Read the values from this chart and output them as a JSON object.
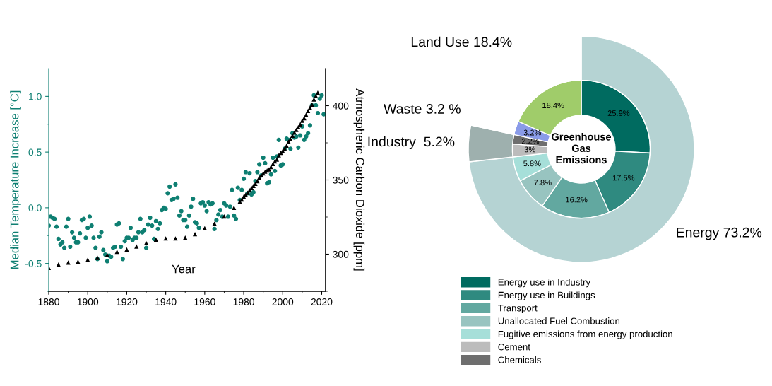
{
  "chart_data": [
    {
      "type": "scatter",
      "xlabel": "Year",
      "ylabel": "Median Temperature Increase [°C]",
      "y2label": "Atmospheric Carbon Dioxide [ppm]",
      "xlim": [
        1880,
        2022
      ],
      "xticks": [
        1880,
        {
          "value": 1890,
          "label": null
        },
        1900,
        {
          "value": 1910,
          "label": null
        },
        1920,
        {
          "value": 1930,
          "label": null
        },
        1940,
        {
          "value": 1950,
          "label": null
        },
        1960,
        {
          "value": 1970,
          "label": null
        },
        1980,
        {
          "value": 1990,
          "label": null
        },
        2000,
        {
          "value": 2010,
          "label": null
        },
        2020
      ],
      "ylim": [
        -0.75,
        1.25
      ],
      "yticks": [
        {
          "value": -0.75,
          "label": null
        },
        {
          "value": -0.5,
          "label": "-0.5"
        },
        {
          "value": -0.25,
          "label": null
        },
        {
          "value": 0,
          "label": "0.0"
        },
        {
          "value": 0.25,
          "label": null
        },
        0.5,
        {
          "value": 0.75,
          "label": null
        },
        {
          "value": 1.0,
          "label": "1.0"
        }
      ],
      "y2lim": [
        275,
        425
      ],
      "y2ticks": [
        {
          "value": 275,
          "label": null
        },
        300,
        {
          "value": 325,
          "label": null
        },
        350,
        {
          "value": 375,
          "label": null
        },
        400
      ],
      "series": [
        {
          "color": "#0e7f72",
          "marker": "circle",
          "x": [
            1880,
            1881,
            1882,
            1883,
            1884,
            1885,
            1886,
            1887,
            1888,
            1889,
            1890,
            1891,
            1892,
            1893,
            1894,
            1895,
            1896,
            1897,
            1898,
            1899,
            1900,
            1901,
            1902,
            1903,
            1904,
            1905,
            1906,
            1907,
            1908,
            1909,
            1910,
            1911,
            1912,
            1913,
            1914,
            1915,
            1916,
            1917,
            1918,
            1919,
            1920,
            1921,
            1922,
            1923,
            1924,
            1925,
            1926,
            1927,
            1928,
            1929,
            1930,
            1931,
            1932,
            1933,
            1934,
            1935,
            1936,
            1937,
            1938,
            1939,
            1940,
            1941,
            1942,
            1943,
            1944,
            1945,
            1946,
            1947,
            1948,
            1949,
            1950,
            1951,
            1952,
            1953,
            1954,
            1955,
            1956,
            1957,
            1958,
            1959,
            1960,
            1961,
            1962,
            1963,
            1964,
            1965,
            1966,
            1967,
            1968,
            1969,
            1970,
            1971,
            1972,
            1973,
            1974,
            1975,
            1976,
            1977,
            1978,
            1979,
            1980,
            1981,
            1982,
            1983,
            1984,
            1985,
            1986,
            1987,
            1988,
            1989,
            1990,
            1991,
            1992,
            1993,
            1994,
            1995,
            1996,
            1997,
            1998,
            1999,
            2000,
            2001,
            2002,
            2003,
            2004,
            2005,
            2006,
            2007,
            2008,
            2009,
            2010,
            2011,
            2012,
            2013,
            2014,
            2015,
            2016,
            2017,
            2018,
            2019,
            2020,
            2021
          ],
          "values": [
            -0.16,
            -0.08,
            -0.09,
            -0.1,
            -0.17,
            -0.28,
            -0.33,
            -0.31,
            -0.36,
            -0.17,
            -0.1,
            -0.35,
            -0.22,
            -0.27,
            -0.31,
            -0.31,
            -0.23,
            -0.11,
            -0.1,
            -0.27,
            -0.18,
            -0.08,
            -0.16,
            -0.27,
            -0.36,
            -0.46,
            -0.26,
            -0.22,
            -0.38,
            -0.42,
            -0.48,
            -0.43,
            -0.44,
            -0.36,
            -0.35,
            -0.15,
            -0.14,
            -0.35,
            -0.46,
            -0.3,
            -0.27,
            -0.27,
            -0.18,
            -0.29,
            -0.27,
            -0.27,
            -0.22,
            -0.1,
            -0.22,
            -0.2,
            -0.36,
            -0.15,
            -0.09,
            -0.16,
            -0.28,
            -0.12,
            -0.19,
            -0.14,
            -0.02,
            0.0,
            -0.01,
            0.13,
            0.19,
            0.07,
            0.08,
            0.21,
            0.09,
            -0.07,
            -0.03,
            -0.11,
            -0.11,
            -0.17,
            -0.07,
            0.01,
            0.08,
            -0.13,
            -0.14,
            -0.18,
            0.04,
            0.05,
            0.02,
            -0.03,
            0.05,
            0.03,
            0.04,
            -0.19,
            -0.11,
            -0.06,
            -0.02,
            -0.08,
            0.04,
            0.02,
            -0.08,
            0.01,
            0.16,
            -0.07,
            -0.1,
            0.18,
            0.07,
            0.16,
            0.26,
            0.32,
            0.13,
            0.31,
            0.12,
            0.14,
            0.24,
            0.32,
            0.39,
            0.29,
            0.45,
            0.4,
            0.22,
            0.23,
            0.3,
            0.45,
            0.33,
            0.46,
            0.61,
            0.38,
            0.39,
            0.53,
            0.62,
            0.61,
            0.53,
            0.67,
            0.63,
            0.64,
            0.54,
            0.65,
            0.73,
            0.61,
            0.64,
            0.67,
            0.74,
            0.92,
            1.01,
            0.92,
            0.85,
            0.98,
            1.01,
            0.84
          ]
        },
        {
          "color": "#000000",
          "marker": "triangle",
          "axis": "y2",
          "x": [
            1880,
            1885,
            1890,
            1895,
            1900,
            1905,
            1910,
            1915,
            1920,
            1925,
            1930,
            1935,
            1940,
            1945,
            1950,
            1955,
            1960,
            1965,
            1970,
            1975,
            1978,
            1979,
            1980,
            1981,
            1982,
            1983,
            1984,
            1985,
            1986,
            1987,
            1988,
            1989,
            1990,
            1991,
            1992,
            1993,
            1994,
            1995,
            1996,
            1997,
            1998,
            1999,
            2000,
            2001,
            2002,
            2003,
            2004,
            2005,
            2006,
            2007,
            2008,
            2009,
            2010,
            2011,
            2012,
            2013,
            2014,
            2015,
            2016,
            2017,
            2018
          ],
          "values": [
            290.8,
            293.0,
            294.3,
            294.9,
            296.2,
            297.6,
            299.5,
            301.6,
            303.2,
            305.2,
            307.5,
            309.8,
            310.6,
            310.6,
            311.1,
            313.5,
            317.5,
            320.6,
            325.4,
            331.3,
            335.4,
            336.8,
            338.7,
            340.1,
            341.4,
            343.0,
            344.6,
            346.0,
            347.4,
            349.2,
            351.6,
            353.1,
            354.4,
            355.6,
            356.4,
            357.1,
            358.8,
            360.8,
            362.6,
            363.7,
            366.6,
            368.3,
            369.5,
            371.1,
            373.2,
            375.8,
            377.5,
            379.8,
            381.9,
            383.8,
            385.6,
            387.4,
            389.9,
            391.6,
            393.9,
            396.5,
            398.6,
            400.8,
            404.2,
            406.5,
            408.7
          ]
        }
      ]
    },
    {
      "type": "donut",
      "title": "Greenhouse Gas Emissions",
      "legend": "bottom",
      "categories": [
        "Energy use in Industry",
        "Energy use in Buildings",
        "Transport",
        "Unallocated Fuel Combustion",
        "Fugitive emissions from energy production",
        "Cement",
        "Chemicals",
        null,
        null
      ],
      "series": [
        {
          "values": [
            25.9,
            17.5,
            16.2,
            7.8,
            5.8,
            3,
            2.2,
            3.2,
            18.4
          ],
          "colors": [
            "#006b60",
            "#2f8a80",
            "#62a8a0",
            "#98c4c0",
            "#a6dfd9",
            "#bcbcbc",
            "#6e6e6e",
            "#8a9be8",
            "#a0cc6a"
          ],
          "value_labels": [
            "25.9%",
            "17.5%",
            "16.2%",
            "7.8%",
            "5.8%",
            "3%",
            "2.2%",
            "3.2%",
            "18.4%"
          ]
        },
        {
          "values": [
            73.2,
            null,
            null,
            null,
            null,
            5.2,
            null,
            3.2,
            18.4
          ],
          "colors": [
            "#b5d3d3",
            null,
            null,
            null,
            null,
            "#9eb0ae",
            null,
            "#ffffff",
            "#ffffff"
          ],
          "value_labels": [
            "Energy 73.2%",
            null,
            null,
            null,
            null,
            "Industry  5.2%",
            null,
            "Waste 3.2 %",
            "Land Use 18.4%"
          ]
        }
      ]
    }
  ]
}
